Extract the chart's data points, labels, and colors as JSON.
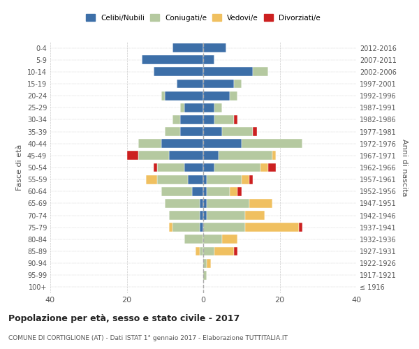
{
  "age_groups": [
    "100+",
    "95-99",
    "90-94",
    "85-89",
    "80-84",
    "75-79",
    "70-74",
    "65-69",
    "60-64",
    "55-59",
    "50-54",
    "45-49",
    "40-44",
    "35-39",
    "30-34",
    "25-29",
    "20-24",
    "15-19",
    "10-14",
    "5-9",
    "0-4"
  ],
  "birth_years": [
    "≤ 1916",
    "1917-1921",
    "1922-1926",
    "1927-1931",
    "1932-1936",
    "1937-1941",
    "1942-1946",
    "1947-1951",
    "1952-1956",
    "1957-1961",
    "1962-1966",
    "1967-1971",
    "1972-1976",
    "1977-1981",
    "1982-1986",
    "1987-1991",
    "1992-1996",
    "1997-2001",
    "2002-2006",
    "2007-2011",
    "2012-2016"
  ],
  "colors": {
    "celibe": "#3d6fa8",
    "coniugato": "#b5c9a0",
    "vedovo": "#f0c060",
    "divorziato": "#cc2020"
  },
  "males": {
    "celibe": [
      0,
      0,
      0,
      0,
      0,
      1,
      1,
      1,
      3,
      4,
      5,
      9,
      11,
      6,
      6,
      5,
      10,
      7,
      13,
      16,
      8
    ],
    "coniugato": [
      0,
      0,
      0,
      1,
      5,
      7,
      8,
      9,
      8,
      8,
      7,
      8,
      6,
      4,
      2,
      1,
      1,
      0,
      0,
      0,
      0
    ],
    "vedovo": [
      0,
      0,
      0,
      1,
      0,
      1,
      0,
      0,
      0,
      3,
      0,
      0,
      0,
      0,
      0,
      0,
      0,
      0,
      0,
      0,
      0
    ],
    "divorziato": [
      0,
      0,
      0,
      0,
      0,
      0,
      0,
      0,
      0,
      0,
      1,
      3,
      0,
      0,
      0,
      0,
      0,
      0,
      0,
      0,
      0
    ]
  },
  "females": {
    "celibe": [
      0,
      0,
      0,
      0,
      0,
      0,
      1,
      1,
      1,
      1,
      3,
      4,
      10,
      5,
      3,
      3,
      7,
      8,
      13,
      3,
      6
    ],
    "coniugato": [
      0,
      1,
      1,
      3,
      5,
      11,
      10,
      11,
      6,
      9,
      12,
      14,
      16,
      8,
      5,
      2,
      2,
      2,
      4,
      0,
      0
    ],
    "vedovo": [
      0,
      0,
      1,
      5,
      4,
      14,
      5,
      6,
      2,
      2,
      2,
      1,
      0,
      0,
      0,
      0,
      0,
      0,
      0,
      0,
      0
    ],
    "divorziato": [
      0,
      0,
      0,
      1,
      0,
      1,
      0,
      0,
      1,
      1,
      2,
      0,
      0,
      1,
      1,
      0,
      0,
      0,
      0,
      0,
      0
    ]
  },
  "title": "Popolazione per età, sesso e stato civile - 2017",
  "subtitle": "COMUNE DI CORTIGLIONE (AT) - Dati ISTAT 1° gennaio 2017 - Elaborazione TUTTITALIA.IT",
  "ylabel_left": "Fasce di età",
  "ylabel_right": "Anni di nascita",
  "legend_labels": [
    "Celibi/Nubili",
    "Coniugati/e",
    "Vedovi/e",
    "Divorziati/e"
  ],
  "xlim": 40,
  "background_color": "#ffffff",
  "grid_color": "#cccccc"
}
